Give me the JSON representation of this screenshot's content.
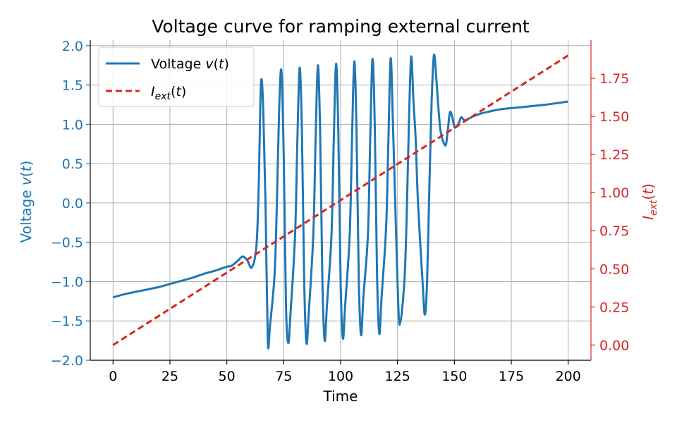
{
  "chart_data": {
    "type": "line",
    "title": "Voltage curve for ramping external current",
    "xlabel": "Time",
    "ylabel_left": "Voltage v(t)",
    "ylabel_right": "I_ext(t)",
    "xlim": [
      -10,
      210
    ],
    "ylim_left": [
      -2.0,
      2.07
    ],
    "ylim_right": [
      -0.1,
      2.0
    ],
    "x_ticks": [
      "0",
      "25",
      "50",
      "75",
      "100",
      "125",
      "150",
      "175",
      "200"
    ],
    "y_ticks_left": [
      "−2.0",
      "−1.5",
      "−1.0",
      "−0.5",
      "0.0",
      "0.5",
      "1.0",
      "1.5",
      "2.0"
    ],
    "y_ticks_right": [
      "0.00",
      "0.25",
      "0.50",
      "0.75",
      "1.00",
      "1.25",
      "1.50",
      "1.75"
    ],
    "grid": true,
    "legend_position": "top-left",
    "colors": {
      "voltage": "#1f77b4",
      "current": "#d62728"
    },
    "series": [
      {
        "name": "Voltage v(t)",
        "axis": "left",
        "style": "solid",
        "x": [
          0,
          5,
          10,
          15,
          20,
          25,
          30,
          35,
          40,
          45,
          50,
          52,
          55,
          57,
          59,
          61,
          63,
          64,
          65,
          66,
          67,
          68,
          69,
          71,
          72,
          73,
          74,
          75,
          76,
          77,
          78,
          80,
          81,
          82,
          83,
          84,
          85,
          86,
          88,
          89,
          90,
          91,
          92,
          93,
          94,
          96,
          97,
          98,
          99,
          100,
          101,
          102,
          104,
          105,
          106,
          107,
          108,
          109,
          110,
          112,
          113,
          114,
          115,
          116,
          117,
          118,
          120,
          121,
          122,
          123,
          124,
          125,
          126,
          128,
          129,
          130,
          131,
          132,
          133,
          134,
          136,
          137,
          138,
          139,
          140,
          141,
          142,
          143,
          144,
          146,
          147,
          148,
          149,
          150,
          151,
          152,
          153,
          154,
          155,
          156,
          157,
          158,
          160,
          162,
          165,
          170,
          180,
          190,
          200
        ],
        "y": [
          -1.2,
          -1.16,
          -1.13,
          -1.1,
          -1.07,
          -1.03,
          -0.99,
          -0.95,
          -0.9,
          -0.86,
          -0.81,
          -0.8,
          -0.73,
          -0.68,
          -0.73,
          -0.82,
          -0.55,
          0.2,
          1.52,
          1.2,
          0.0,
          -1.75,
          -1.55,
          -0.9,
          0.0,
          1.2,
          1.68,
          0.6,
          -1.3,
          -1.78,
          -1.4,
          -0.4,
          0.8,
          1.72,
          0.9,
          -1.0,
          -1.78,
          -1.4,
          -0.4,
          0.8,
          1.75,
          0.9,
          -1.0,
          -1.75,
          -1.3,
          -0.4,
          0.8,
          1.77,
          0.9,
          -1.0,
          -1.72,
          -1.3,
          -0.4,
          0.8,
          1.8,
          0.9,
          -1.0,
          -1.68,
          -1.2,
          -0.4,
          0.8,
          1.83,
          1.0,
          -0.9,
          -1.66,
          -1.2,
          -0.3,
          0.8,
          1.84,
          1.0,
          0.0,
          -1.0,
          -1.55,
          -1.0,
          -0.2,
          1.0,
          1.86,
          1.3,
          0.8,
          0.0,
          -1.0,
          -1.42,
          -1.0,
          0.2,
          1.3,
          1.88,
          1.6,
          1.2,
          0.9,
          0.73,
          0.9,
          1.15,
          1.1,
          0.97,
          0.97,
          1.02,
          1.09,
          1.06,
          1.05,
          1.07,
          1.08,
          1.1,
          1.12,
          1.14,
          1.16,
          1.19,
          1.22,
          1.25,
          1.29
        ]
      },
      {
        "name": "I_ext(t)",
        "axis": "right",
        "style": "dashed",
        "x": [
          0,
          200
        ],
        "y": [
          0.0,
          1.9
        ]
      }
    ]
  }
}
